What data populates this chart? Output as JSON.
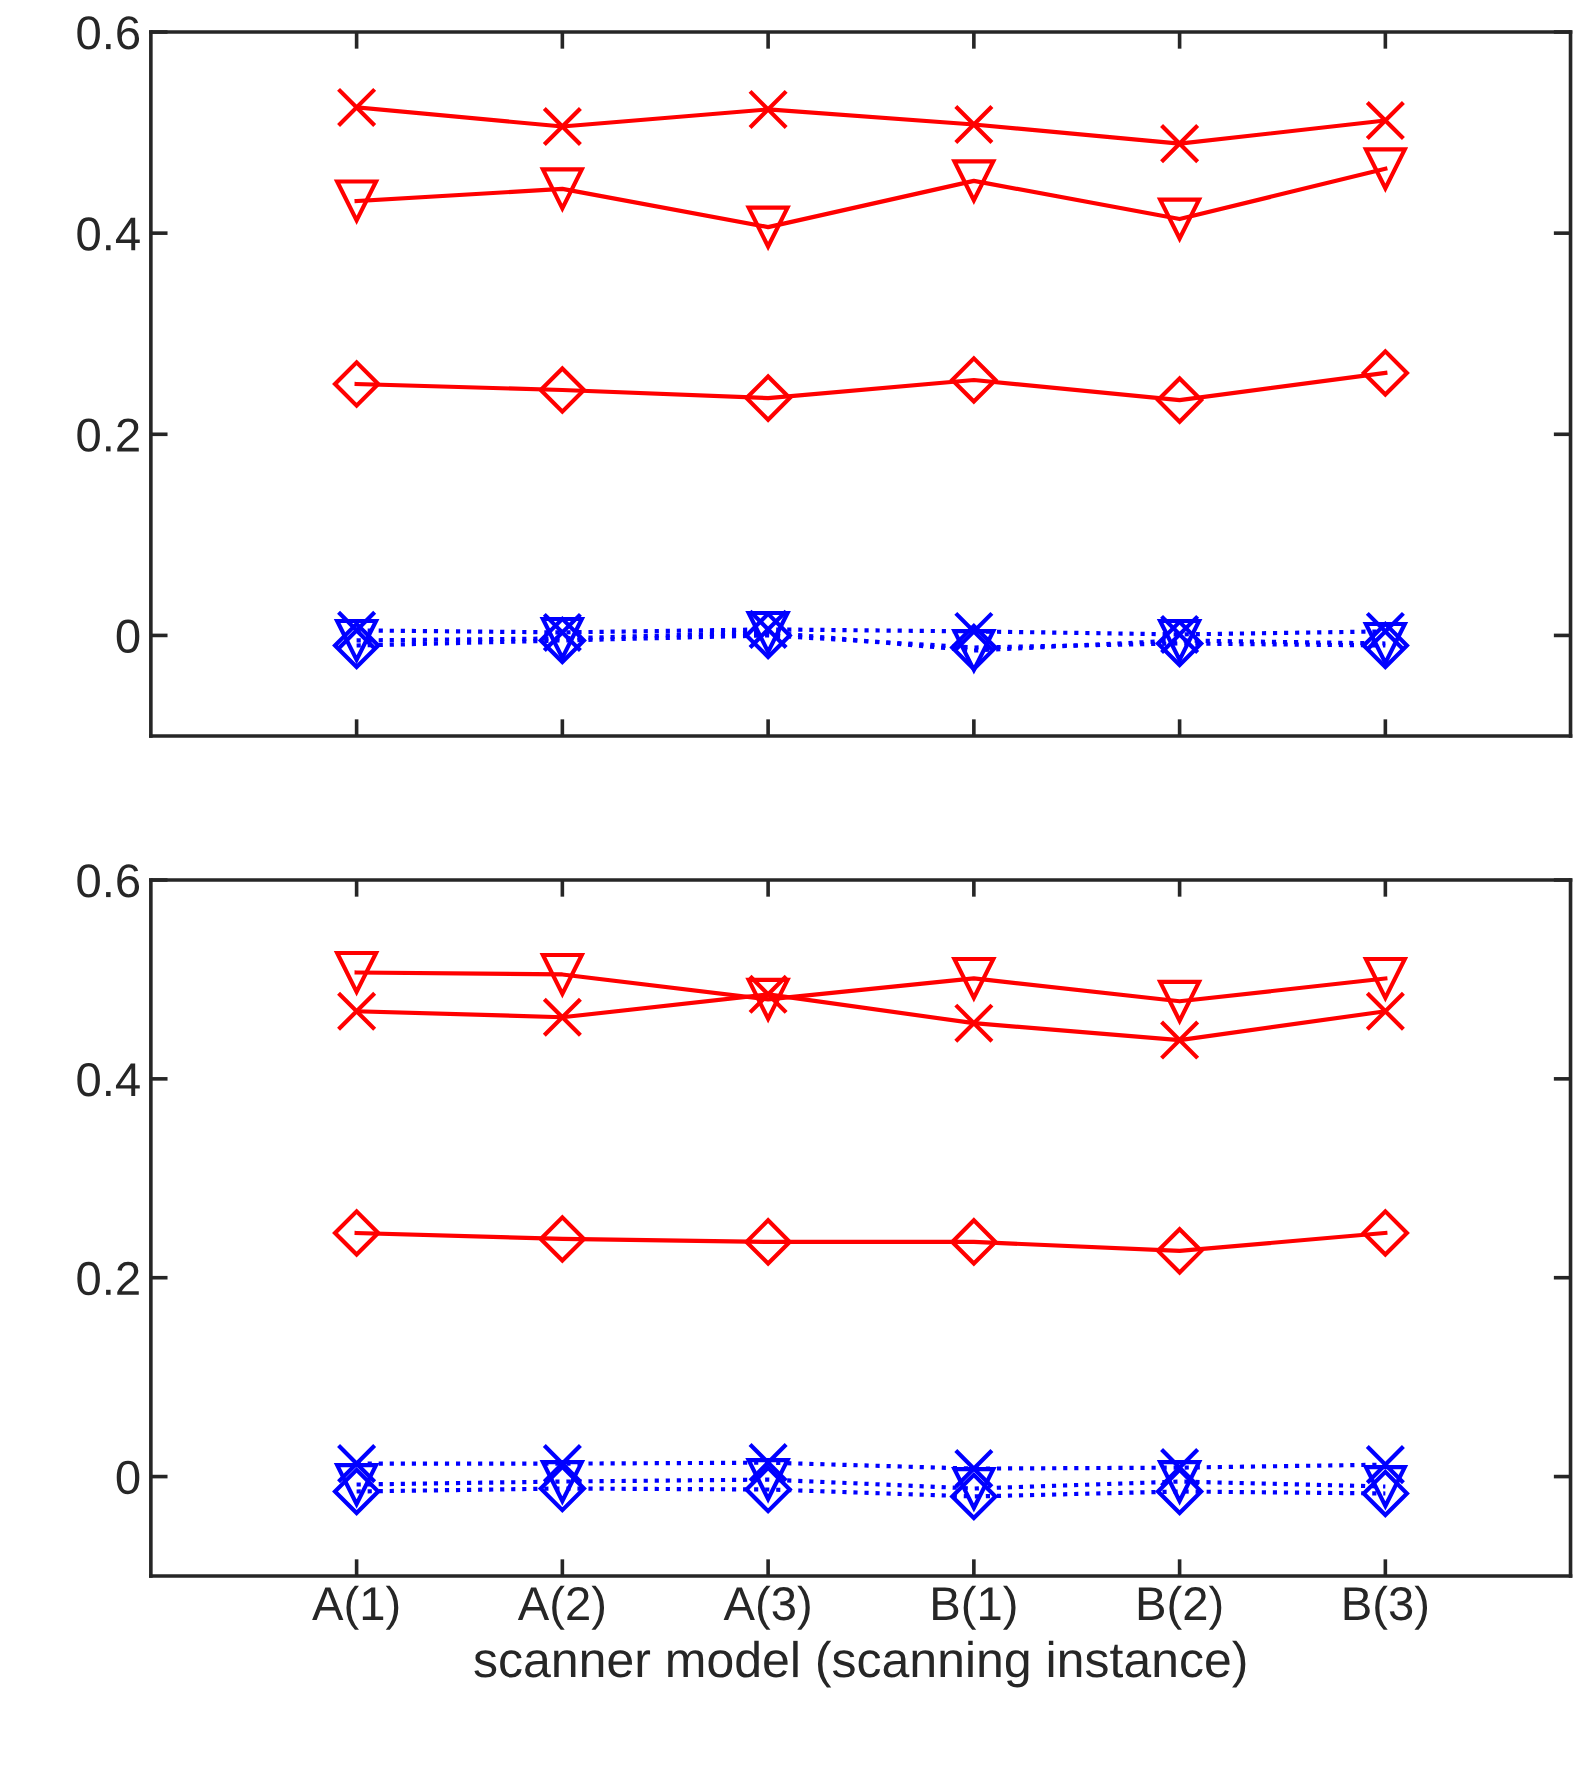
{
  "chart_data": [
    {
      "type": "line",
      "categories": [
        null,
        null,
        null,
        null,
        null,
        null
      ],
      "ylim": [
        -0.1,
        0.6
      ],
      "yticks": [
        0,
        {
          "value": 0.2,
          "label": "0.2"
        },
        {
          "value": 0.4,
          "label": "0.4"
        },
        {
          "value": 0.6,
          "label": "0.6"
        }
      ],
      "tick_labels": "y",
      "grid": false,
      "series": [
        {
          "color": "#ff0000",
          "marker": "cross",
          "line_style": "solid",
          "values": [
            0.525,
            0.506,
            0.523,
            0.508,
            0.489,
            0.512
          ]
        },
        {
          "color": "#ff0000",
          "marker": "triangle",
          "line_style": "solid",
          "values": [
            0.432,
            0.444,
            0.406,
            0.452,
            0.414,
            0.464
          ]
        },
        {
          "color": "#ff0000",
          "marker": "diamond",
          "line_style": "solid",
          "values": [
            0.25,
            0.244,
            0.236,
            0.254,
            0.234,
            0.261
          ]
        },
        {
          "color": "#0000ff",
          "marker": "cross",
          "line_style": "dotted",
          "values": [
            0.005,
            0.003,
            0.006,
            0.004,
            0.001,
            0.004
          ]
        },
        {
          "color": "#0000ff",
          "marker": "triangle",
          "line_style": "dotted",
          "values": [
            -0.005,
            -0.003,
            0.003,
            -0.015,
            -0.005,
            -0.008
          ]
        },
        {
          "color": "#0000ff",
          "marker": "diamond",
          "line_style": "dotted",
          "values": [
            -0.01,
            -0.005,
            0.0,
            -0.012,
            -0.008,
            -0.01
          ]
        }
      ]
    },
    {
      "type": "line",
      "categories": [
        "A(1)",
        "A(2)",
        "A(3)",
        "B(1)",
        "B(2)",
        "B(3)"
      ],
      "xlabel": "scanner model (scanning instance)",
      "ylim": [
        -0.1,
        0.6
      ],
      "yticks": [
        0,
        {
          "value": 0.2,
          "label": "0.2"
        },
        {
          "value": 0.4,
          "label": "0.4"
        },
        {
          "value": 0.6,
          "label": "0.6"
        }
      ],
      "grid": false,
      "series": [
        {
          "color": "#ff0000",
          "marker": "triangle",
          "line_style": "solid",
          "values": [
            0.507,
            0.505,
            0.48,
            0.501,
            0.478,
            0.501
          ]
        },
        {
          "color": "#ff0000",
          "marker": "cross",
          "line_style": "solid",
          "values": [
            0.468,
            0.462,
            0.485,
            0.456,
            0.439,
            0.468
          ]
        },
        {
          "color": "#ff0000",
          "marker": "diamond",
          "line_style": "solid",
          "values": [
            0.245,
            0.239,
            0.236,
            0.236,
            0.227,
            0.245
          ]
        },
        {
          "color": "#0000ff",
          "marker": "cross",
          "line_style": "dotted",
          "values": [
            0.013,
            0.013,
            0.014,
            0.008,
            0.009,
            0.012
          ]
        },
        {
          "color": "#0000ff",
          "marker": "triangle",
          "line_style": "dotted",
          "values": [
            -0.008,
            -0.005,
            -0.003,
            -0.012,
            -0.005,
            -0.01
          ]
        },
        {
          "color": "#0000ff",
          "marker": "diamond",
          "line_style": "dotted",
          "values": [
            -0.015,
            -0.012,
            -0.013,
            -0.02,
            -0.015,
            -0.017
          ]
        }
      ]
    }
  ]
}
